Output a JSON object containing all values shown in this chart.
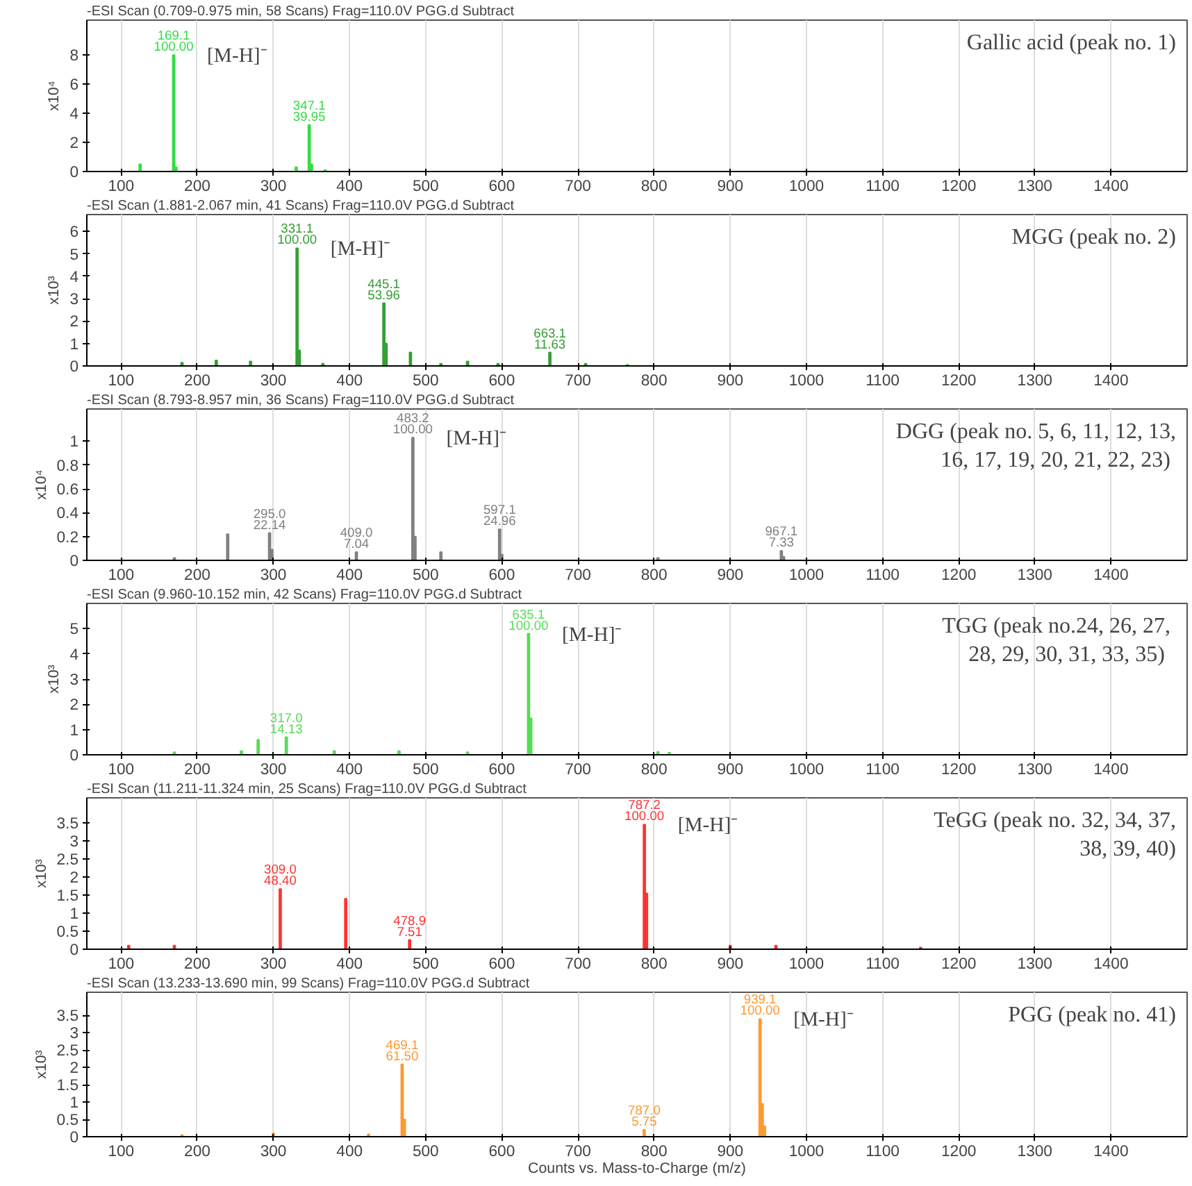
{
  "chart_data": [
    {
      "type": "bar",
      "title": "-ESI Scan (0.709-0.975 min, 58 Scans) Frag=110.0V PGG.d  Subtract",
      "ylabel": "x10⁴",
      "color": "#33dd44",
      "xlim": [
        55,
        1500
      ],
      "xticks": [
        100,
        200,
        300,
        400,
        500,
        600,
        700,
        800,
        900,
        1000,
        1100,
        1200,
        1300,
        1400
      ],
      "ylim": [
        0,
        10.4
      ],
      "yticks": [
        0,
        2,
        4,
        6,
        8
      ],
      "grid": "x",
      "x": [
        125,
        169.1,
        172,
        330,
        347.1,
        350,
        368
      ],
      "values": [
        0.5,
        8.0,
        0.3,
        0.3,
        3.2,
        0.5,
        0.1
      ],
      "annotations": [
        {
          "text": "169.1\n100.00",
          "x": 169.1,
          "y": 8.0
        },
        {
          "text": "347.1\n39.95",
          "x": 347.1,
          "y": 3.2
        },
        {
          "text": "[M-H]⁻",
          "x": 169.1,
          "y": 8.0
        },
        "Gallic acid (peak no. 1)"
      ]
    },
    {
      "type": "bar",
      "title": "-ESI Scan (1.881-2.067 min, 41 Scans) Frag=110.0V PGG.d  Subtract",
      "ylabel": "x10³",
      "color": "#33a033",
      "xlim": [
        55,
        1500
      ],
      "xticks": [
        100,
        200,
        300,
        400,
        500,
        600,
        700,
        800,
        900,
        1000,
        1100,
        1200,
        1300,
        1400
      ],
      "ylim": [
        0,
        6.75
      ],
      "yticks": [
        0,
        1,
        2,
        3,
        4,
        5,
        6
      ],
      "grid": "x",
      "x": [
        180,
        225,
        270,
        331.1,
        334,
        365,
        445.1,
        448,
        480,
        520,
        555,
        595,
        663.1,
        710,
        765
      ],
      "values": [
        0.15,
        0.25,
        0.2,
        5.25,
        0.7,
        0.1,
        2.8,
        1.0,
        0.6,
        0.1,
        0.2,
        0.1,
        0.6,
        0.1,
        0.05
      ],
      "annotations": [
        {
          "text": "331.1\n100.00",
          "x": 331.1,
          "y": 5.25
        },
        {
          "text": "445.1\n53.96",
          "x": 445.1,
          "y": 2.8
        },
        {
          "text": "663.1\n11.63",
          "x": 663.1,
          "y": 0.6
        },
        {
          "text": "[M-H]⁻",
          "x": 331.1,
          "y": 5.25
        },
        "MGG (peak no. 2)"
      ]
    },
    {
      "type": "bar",
      "title": "-ESI Scan (8.793-8.957 min, 36 Scans) Frag=110.0V PGG.d  Subtract",
      "ylabel": "x10⁴",
      "color": "#808080",
      "xlim": [
        55,
        1500
      ],
      "xticks": [
        100,
        200,
        300,
        400,
        500,
        600,
        700,
        800,
        900,
        1000,
        1100,
        1200,
        1300,
        1400
      ],
      "ylim": [
        0,
        1.27
      ],
      "yticks": [
        0,
        0.2,
        0.4,
        0.6,
        0.8,
        1
      ],
      "grid": "x",
      "x": [
        170,
        240,
        295.0,
        298,
        409.0,
        483.2,
        486,
        520,
        597.1,
        600,
        805,
        967.1,
        970
      ],
      "values": [
        0.02,
        0.22,
        0.23,
        0.09,
        0.07,
        1.03,
        0.2,
        0.07,
        0.26,
        0.05,
        0.02,
        0.08,
        0.03
      ],
      "annotations": [
        {
          "text": "295.0\n22.14",
          "x": 295.0,
          "y": 0.23
        },
        {
          "text": "409.0\n7.04",
          "x": 409.0,
          "y": 0.07
        },
        {
          "text": "483.2\n100.00",
          "x": 483.2,
          "y": 1.03
        },
        {
          "text": "597.1\n24.96",
          "x": 597.1,
          "y": 0.26
        },
        {
          "text": "967.1\n7.33",
          "x": 967.1,
          "y": 0.08
        },
        {
          "text": "[M-H]⁻",
          "x": 483.2,
          "y": 1.03
        },
        "DGG (peak no. 5, 6, 11, 12, 13,\n16, 17,  19, 20, 21, 22, 23)"
      ]
    },
    {
      "type": "bar",
      "title": "-ESI Scan (9.960-10.152 min, 42 Scans) Frag=110.0V PGG.d  Subtract",
      "ylabel": "x10³",
      "color": "#55dd55",
      "xlim": [
        55,
        1500
      ],
      "xticks": [
        100,
        200,
        300,
        400,
        500,
        600,
        700,
        800,
        900,
        1000,
        1100,
        1200,
        1300,
        1400
      ],
      "ylim": [
        0,
        6.0
      ],
      "yticks": [
        0,
        1,
        2,
        3,
        4,
        5
      ],
      "grid": "x",
      "x": [
        170,
        258,
        280,
        317.0,
        380,
        465,
        555,
        635.1,
        638,
        805,
        820
      ],
      "values": [
        0.1,
        0.15,
        0.6,
        0.7,
        0.15,
        0.15,
        0.1,
        4.8,
        1.45,
        0.12,
        0.08
      ],
      "annotations": [
        {
          "text": "317.0\n14.13",
          "x": 317.0,
          "y": 0.7
        },
        {
          "text": "635.1\n100.00",
          "x": 635.1,
          "y": 4.8
        },
        {
          "text": "[M-H]⁻",
          "x": 635.1,
          "y": 4.8
        },
        "TGG (peak no.24,  26, 27,\n28, 29,  30, 31, 33,  35)"
      ]
    },
    {
      "type": "bar",
      "title": "-ESI Scan (11.211-11.324 min, 25 Scans) Frag=110.0V PGG.d  Subtract",
      "ylabel": "x10³",
      "color": "#ff3333",
      "xlim": [
        55,
        1500
      ],
      "xticks": [
        100,
        200,
        300,
        400,
        500,
        600,
        700,
        800,
        900,
        1000,
        1100,
        1200,
        1300,
        1400
      ],
      "ylim": [
        0,
        4.2
      ],
      "yticks": [
        0,
        0.5,
        1,
        1.5,
        2,
        2.5,
        3,
        3.5
      ],
      "grid": "x",
      "x": [
        110,
        170,
        309.0,
        395,
        478.9,
        787.2,
        790,
        900,
        960,
        1150
      ],
      "values": [
        0.1,
        0.1,
        1.67,
        1.4,
        0.26,
        3.46,
        1.55,
        0.1,
        0.1,
        0.05
      ],
      "annotations": [
        {
          "text": "309.0\n48.40",
          "x": 309.0,
          "y": 1.67
        },
        {
          "text": "478.9\n7.51",
          "x": 478.9,
          "y": 0.26
        },
        {
          "text": "787.2\n100.00",
          "x": 787.2,
          "y": 3.46
        },
        {
          "text": "[M-H]⁻",
          "x": 787.2,
          "y": 3.46
        },
        "TeGG (peak no. 32, 34, 37,\n38, 39, 40)"
      ]
    },
    {
      "type": "bar",
      "title": "-ESI Scan (13.233-13.690 min, 99 Scans) Frag=110.0V PGG.d  Subtract",
      "ylabel": "x10³",
      "xlabel": "Counts vs. Mass-to-Charge (m/z)",
      "color": "#ff9933",
      "xlim": [
        55,
        1500
      ],
      "xticks": [
        100,
        200,
        300,
        400,
        500,
        600,
        700,
        800,
        900,
        1000,
        1100,
        1200,
        1300,
        1400
      ],
      "ylim": [
        0,
        4.17
      ],
      "yticks": [
        0,
        0.5,
        1,
        1.5,
        2,
        2.5,
        3,
        3.5
      ],
      "grid": "x",
      "x": [
        180,
        300,
        425,
        469.1,
        472,
        787.0,
        939.1,
        942,
        945
      ],
      "values": [
        0.05,
        0.1,
        0.07,
        2.09,
        0.5,
        0.2,
        3.4,
        0.95,
        0.3
      ],
      "annotations": [
        {
          "text": "469.1\n61.50",
          "x": 469.1,
          "y": 2.09
        },
        {
          "text": "787.0\n5.75",
          "x": 787.0,
          "y": 0.2
        },
        {
          "text": "939.1\n100.00",
          "x": 939.1,
          "y": 3.4
        },
        {
          "text": "[M-H]⁻",
          "x": 939.1,
          "y": 3.4
        },
        "PGG (peak no. 41)"
      ]
    }
  ]
}
